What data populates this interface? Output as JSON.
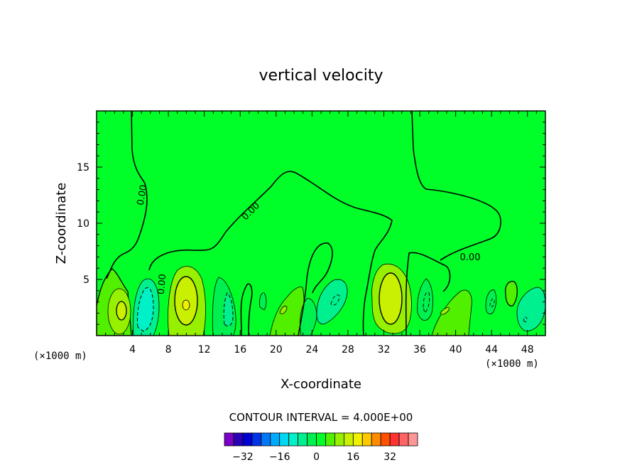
{
  "chart_data": {
    "type": "contour",
    "title": "vertical velocity",
    "xlabel": "X-coordinate",
    "ylabel": "Z-coordinate",
    "x_unit": "(×1000 m)",
    "x_unit_right": "(×1000 m)",
    "xlim": [
      0,
      50
    ],
    "ylim": [
      0,
      20
    ],
    "x_ticks": [
      "4",
      "8",
      "12",
      "16",
      "20",
      "24",
      "28",
      "32",
      "36",
      "40",
      "44",
      "48"
    ],
    "y_ticks": [
      "5",
      "10",
      "15"
    ],
    "contour_labels": [
      "0.00",
      "0.00",
      "0.00",
      "0.00"
    ],
    "contour_interval_text": "CONTOUR INTERVAL = 4.000E+00",
    "contour_interval": 4.0,
    "colorbar": {
      "tick_labels": [
        "−32",
        "−16",
        "0",
        "16",
        "32"
      ],
      "tick_values": [
        -32,
        -16,
        0,
        16,
        32
      ],
      "colors": [
        "#7a00c8",
        "#2a00b4",
        "#0000d2",
        "#0032e6",
        "#0078f5",
        "#00aaff",
        "#00d7f0",
        "#00f0c8",
        "#00f090",
        "#00f050",
        "#00ff28",
        "#50f000",
        "#96f000",
        "#c8f000",
        "#f0f000",
        "#ffc800",
        "#ff8c00",
        "#ff5000",
        "#ff3232",
        "#ff6464",
        "#ff9696"
      ]
    },
    "features": [
      {
        "x": 3,
        "z": 2.5,
        "sign": "positive",
        "approx_peak": 8
      },
      {
        "x": 5.5,
        "z": 2.5,
        "sign": "negative",
        "approx_peak": -8
      },
      {
        "x": 10,
        "z": 3,
        "sign": "positive",
        "approx_peak": 16
      },
      {
        "x": 15,
        "z": 3,
        "sign": "negative",
        "approx_peak": -4
      },
      {
        "x": 26.5,
        "z": 3,
        "sign": "negative",
        "approx_peak": -4
      },
      {
        "x": 33,
        "z": 3.5,
        "sign": "positive",
        "approx_peak": 12
      },
      {
        "x": 36.5,
        "z": 3,
        "sign": "negative",
        "approx_peak": -4
      },
      {
        "x": 44.5,
        "z": 3,
        "sign": "negative",
        "approx_peak": -4
      },
      {
        "x": 48,
        "z": 2,
        "sign": "negative",
        "approx_peak": -4
      }
    ],
    "colors": {
      "background_field": "#00ff28",
      "weak_positive": "#50f000",
      "positive": "#96f000",
      "strong_positive": "#c8f000",
      "peak": "#f0f000",
      "weak_negative": "#00f050",
      "negative": "#00f090",
      "strong_negative": "#00f0c8"
    }
  }
}
